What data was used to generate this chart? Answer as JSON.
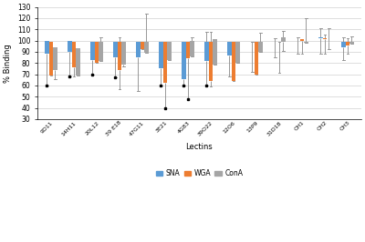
{
  "categories": [
    "9D11",
    "14H11",
    "20L12",
    "39 E18",
    "47G11",
    "3E21",
    "4G83",
    "39O22",
    "12O6",
    "13P9",
    "31D18",
    "CH1",
    "CH2",
    "CH3"
  ],
  "SNA": {
    "bar_bottom": [
      88,
      90,
      83,
      85,
      85,
      75,
      66,
      82,
      87,
      99,
      102,
      103,
      102,
      94
    ],
    "bar_top": [
      100,
      100,
      99,
      99,
      99,
      99,
      99,
      99,
      99,
      99,
      102,
      103,
      103,
      99
    ],
    "whisker_low": [
      60,
      68,
      70,
      67,
      55,
      60,
      60,
      60,
      68,
      72,
      85,
      88,
      88,
      83
    ],
    "whisker_high": [
      100,
      100,
      99,
      99,
      99,
      99,
      99,
      108,
      99,
      99,
      102,
      103,
      111,
      103
    ],
    "outliers": [
      60,
      68,
      70,
      67,
      null,
      60,
      60,
      60,
      null,
      null,
      null,
      null,
      null,
      null
    ]
  },
  "WGA": {
    "bar_bottom": [
      69,
      76,
      80,
      74,
      92,
      62,
      84,
      64,
      64,
      70,
      99,
      100,
      101,
      96
    ],
    "bar_top": [
      99,
      99,
      99,
      99,
      99,
      99,
      99,
      99,
      99,
      99,
      99,
      101,
      102,
      99
    ],
    "whisker_low": [
      69,
      68,
      80,
      57,
      92,
      40,
      48,
      59,
      64,
      70,
      71,
      88,
      88,
      88
    ],
    "whisker_high": [
      99,
      99,
      99,
      103,
      99,
      99,
      99,
      108,
      99,
      99,
      99,
      101,
      105,
      102
    ],
    "outliers": [
      null,
      null,
      null,
      null,
      null,
      40,
      48,
      null,
      null,
      null,
      null,
      null,
      null,
      null
    ]
  },
  "ConA": {
    "bar_bottom": [
      74,
      69,
      82,
      79,
      89,
      83,
      86,
      79,
      80,
      90,
      99,
      98,
      99,
      97
    ],
    "bar_top": [
      94,
      93,
      99,
      99,
      99,
      99,
      100,
      101,
      99,
      99,
      103,
      99,
      99,
      99
    ],
    "whisker_low": [
      66,
      69,
      82,
      77,
      89,
      83,
      86,
      79,
      80,
      90,
      91,
      98,
      92,
      97
    ],
    "whisker_high": [
      94,
      93,
      103,
      99,
      124,
      99,
      103,
      101,
      99,
      107,
      109,
      120,
      111,
      104
    ],
    "outliers": [
      null,
      null,
      null,
      null,
      null,
      null,
      null,
      null,
      null,
      null,
      null,
      null,
      null,
      null
    ]
  },
  "colors": {
    "SNA": "#5B9BD5",
    "WGA": "#ED7D31",
    "ConA": "#A5A5A5"
  },
  "ylabel": "% Binding",
  "xlabel": "Lectins",
  "ylim": [
    30,
    130
  ],
  "yticks": [
    30,
    40,
    50,
    60,
    70,
    80,
    90,
    100,
    110,
    120,
    130
  ],
  "background_color": "#FFFFFF",
  "grid_color": "#D0D0D0"
}
